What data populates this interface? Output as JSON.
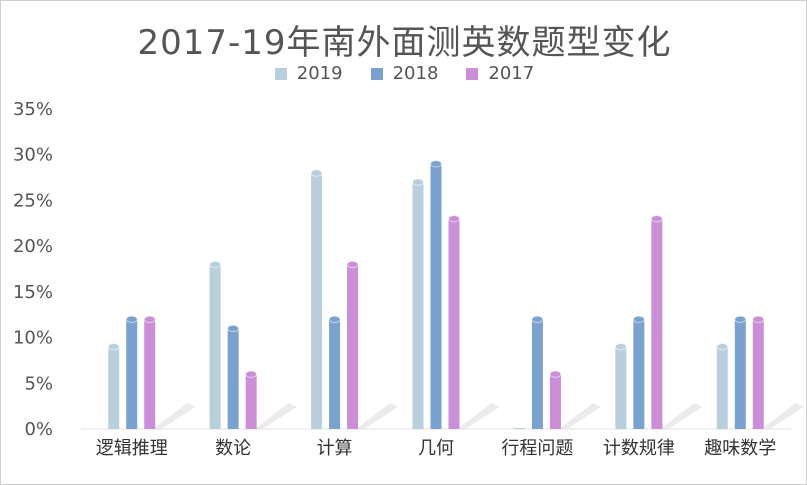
{
  "chart_data": {
    "type": "bar",
    "title": "2017-19年南外面测英数题型变化",
    "categories": [
      "逻辑推理",
      "数论",
      "计算",
      "几何",
      "行程问题",
      "计数规律",
      "趣味数学"
    ],
    "series": [
      {
        "name": "2019",
        "color": "#b9cfdc",
        "values": [
          9,
          18,
          28,
          27,
          0,
          9,
          9
        ]
      },
      {
        "name": "2018",
        "color": "#7aa1cf",
        "values": [
          12,
          11,
          12,
          29,
          12,
          12,
          12
        ]
      },
      {
        "name": "2017",
        "color": "#cb8fd8",
        "values": [
          12,
          6,
          18,
          23,
          6,
          23,
          12
        ]
      }
    ],
    "yticks": [
      "0%",
      "5%",
      "10%",
      "15%",
      "20%",
      "25%",
      "30%",
      "35%"
    ],
    "ylim": [
      0,
      35
    ],
    "legend_position": "top-center",
    "grid": false
  }
}
